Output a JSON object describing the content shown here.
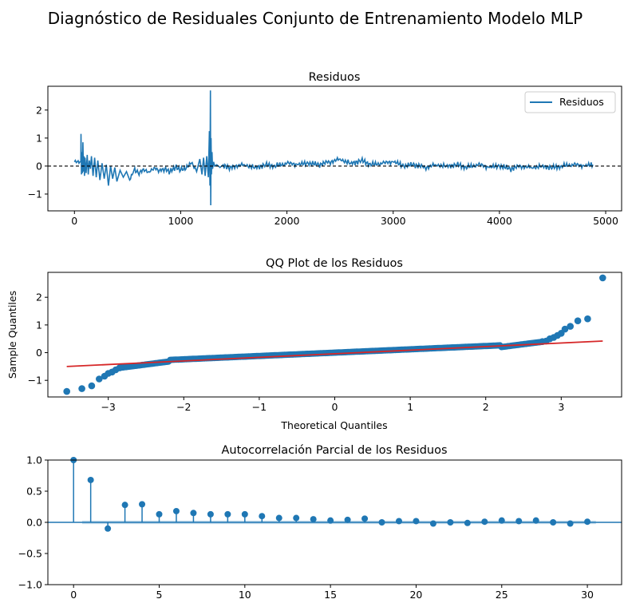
{
  "figure": {
    "title": "Diagnóstico de Residuales Conjunto de Entrenamiento Modelo MLP"
  },
  "chart_data": [
    {
      "type": "line",
      "title": "Residuos",
      "xlabel": "",
      "ylabel": "",
      "xlim": [
        -250,
        5150
      ],
      "ylim": [
        -1.6,
        2.85
      ],
      "xticks": [
        0,
        1000,
        2000,
        3000,
        4000,
        5000
      ],
      "yticks": [
        -1,
        0,
        1,
        2
      ],
      "legend": {
        "position": "upper-right",
        "entries": [
          "Residuos"
        ]
      },
      "reference_line": {
        "y": 0,
        "style": "dashed",
        "color": "#000000"
      },
      "series": [
        {
          "name": "Residuos",
          "color": "#1f77b4",
          "x": [
            0,
            60,
            62,
            66,
            70,
            75,
            80,
            85,
            90,
            95,
            100,
            110,
            120,
            130,
            140,
            150,
            160,
            175,
            190,
            205,
            220,
            240,
            260,
            280,
            300,
            320,
            340,
            360,
            380,
            400,
            430,
            460,
            490,
            520,
            560,
            600,
            650,
            700,
            750,
            800,
            850,
            900,
            950,
            1000,
            1050,
            1100,
            1150,
            1180,
            1200,
            1215,
            1230,
            1245,
            1260,
            1270,
            1275,
            1280,
            1283,
            1286,
            1290,
            1295,
            1300,
            1310,
            1320,
            1340,
            1370,
            1400,
            1450,
            1500,
            1600,
            1700,
            1800,
            1900,
            2000,
            2100,
            2200,
            2300,
            2400,
            2500,
            2600,
            2700,
            2800,
            2900,
            3000,
            3100,
            3200,
            3300,
            3400,
            3500,
            3600,
            3700,
            3800,
            3900,
            4000,
            4100,
            4200,
            4300,
            4400,
            4500,
            4600,
            4700,
            4800,
            4880
          ],
          "y": [
            0.15,
            0.15,
            1.15,
            -0.3,
            0.5,
            -0.25,
            0.85,
            -0.2,
            0.35,
            -0.35,
            0.3,
            -0.25,
            0.4,
            -0.3,
            0.2,
            -0.1,
            0.35,
            -0.35,
            0.3,
            -0.4,
            0.2,
            -0.5,
            0.1,
            -0.45,
            0.05,
            -0.7,
            0.0,
            -0.45,
            -0.05,
            -0.55,
            -0.15,
            -0.4,
            -0.2,
            -0.5,
            -0.15,
            -0.25,
            -0.1,
            -0.2,
            -0.05,
            -0.15,
            -0.1,
            -0.2,
            -0.05,
            -0.15,
            -0.1,
            0.1,
            -0.2,
            0.25,
            -0.3,
            0.3,
            -0.35,
            0.35,
            -0.4,
            1.25,
            -0.7,
            2.7,
            -1.4,
            1.0,
            -0.3,
            0.5,
            -0.1,
            0.15,
            0.0,
            0.05,
            -0.05,
            0.05,
            -0.05,
            0.0,
            0.05,
            -0.05,
            0.05,
            0.0,
            0.1,
            0.05,
            0.1,
            0.05,
            0.15,
            0.25,
            0.1,
            0.2,
            0.05,
            0.1,
            0.15,
            0.0,
            0.05,
            -0.05,
            0.05,
            0.0,
            0.05,
            -0.05,
            0.05,
            -0.05,
            0.0,
            -0.1,
            0.0,
            -0.05,
            0.0,
            -0.05,
            0.0,
            0.05,
            0.0,
            0.05
          ]
        }
      ]
    },
    {
      "type": "scatter",
      "title": "QQ Plot de los Residuos",
      "xlabel": "Theoretical Quantiles",
      "ylabel": "Sample Quantiles",
      "xlim": [
        -3.8,
        3.8
      ],
      "ylim": [
        -1.6,
        2.9
      ],
      "xticks": [
        -3,
        -2,
        -1,
        0,
        1,
        2,
        3
      ],
      "yticks": [
        -1,
        0,
        1,
        2
      ],
      "fit_line": {
        "x": [
          -3.55,
          3.55
        ],
        "y": [
          -0.5,
          0.42
        ],
        "color": "#d62728"
      },
      "marker_color": "#1f77b4",
      "outliers": {
        "x": [
          -3.55,
          -3.35,
          -3.22,
          -3.12,
          -3.05,
          -3.0,
          -2.95,
          -2.9,
          -2.85,
          2.75,
          2.8,
          2.85,
          2.9,
          2.95,
          3.0,
          3.05,
          3.12,
          3.22,
          3.35,
          3.55
        ],
        "y": [
          -1.4,
          -1.3,
          -1.2,
          -0.95,
          -0.85,
          -0.75,
          -0.7,
          -0.62,
          -0.55,
          0.4,
          0.42,
          0.5,
          0.55,
          0.62,
          0.7,
          0.85,
          0.95,
          1.15,
          1.22,
          2.7
        ]
      }
    },
    {
      "type": "stem",
      "title": "Autocorrelación Parcial de los Residuos",
      "xlabel": "",
      "ylabel": "",
      "xlim": [
        -1.5,
        32
      ],
      "ylim": [
        -1.0,
        1.0
      ],
      "xticks": [
        0,
        5,
        10,
        15,
        20,
        25,
        30
      ],
      "yticks": [
        -1.0,
        -0.5,
        0.0,
        0.5,
        1.0
      ],
      "color": "#1f77b4",
      "confidence_band": 0.028,
      "lags": [
        0,
        1,
        2,
        3,
        4,
        5,
        6,
        7,
        8,
        9,
        10,
        11,
        12,
        13,
        14,
        15,
        16,
        17,
        18,
        19,
        20,
        21,
        22,
        23,
        24,
        25,
        26,
        27,
        28,
        29,
        30
      ],
      "values": [
        1.0,
        0.68,
        -0.1,
        0.28,
        0.29,
        0.13,
        0.18,
        0.15,
        0.13,
        0.13,
        0.13,
        0.1,
        0.07,
        0.07,
        0.05,
        0.03,
        0.04,
        0.06,
        0.0,
        0.02,
        0.02,
        -0.02,
        0.0,
        -0.01,
        0.01,
        0.03,
        0.02,
        0.03,
        0.0,
        -0.02,
        0.01
      ]
    }
  ]
}
